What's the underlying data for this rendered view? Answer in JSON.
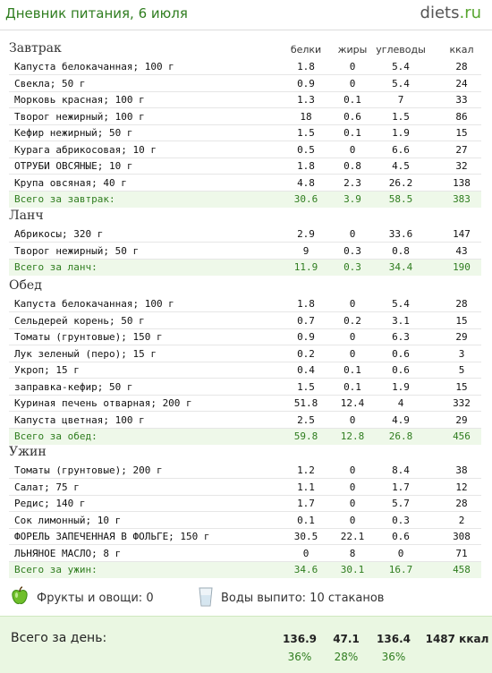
{
  "header": {
    "title": "Дневник питания, 6 июля",
    "logo_main": "diets",
    "logo_tld": ".ru"
  },
  "columns": {
    "protein": "белки",
    "fat": "жиры",
    "carbs": "углеводы",
    "kcal": "ккал"
  },
  "meals": [
    {
      "title": "Завтрак",
      "items": [
        [
          "Капуста белокачанная; 100 г",
          "1.8",
          "0",
          "5.4",
          "28"
        ],
        [
          "Свекла; 50 г",
          "0.9",
          "0",
          "5.4",
          "24"
        ],
        [
          "Морковь красная; 100 г",
          "1.3",
          "0.1",
          "7",
          "33"
        ],
        [
          "Творог нежирный; 100 г",
          "18",
          "0.6",
          "1.5",
          "86"
        ],
        [
          "Кефир нежирный; 50 г",
          "1.5",
          "0.1",
          "1.9",
          "15"
        ],
        [
          "Курага абрикосовая; 10 г",
          "0.5",
          "0",
          "6.6",
          "27"
        ],
        [
          "ОТРУБИ ОВСЯНЫЕ; 10 г",
          "1.8",
          "0.8",
          "4.5",
          "32"
        ],
        [
          "Крупа овсяная; 40 г",
          "4.8",
          "2.3",
          "26.2",
          "138"
        ]
      ],
      "total": [
        "Всего за завтрак:",
        "30.6",
        "3.9",
        "58.5",
        "383"
      ]
    },
    {
      "title": "Ланч",
      "items": [
        [
          "Абрикосы; 320 г",
          "2.9",
          "0",
          "33.6",
          "147"
        ],
        [
          "Творог нежирный; 50 г",
          "9",
          "0.3",
          "0.8",
          "43"
        ]
      ],
      "total": [
        "Всего за ланч:",
        "11.9",
        "0.3",
        "34.4",
        "190"
      ]
    },
    {
      "title": "Обед",
      "items": [
        [
          "Капуста белокачанная; 100 г",
          "1.8",
          "0",
          "5.4",
          "28"
        ],
        [
          "Сельдерей корень; 50 г",
          "0.7",
          "0.2",
          "3.1",
          "15"
        ],
        [
          "Томаты (грунтовые); 150 г",
          "0.9",
          "0",
          "6.3",
          "29"
        ],
        [
          "Лук зеленый (перо); 15 г",
          "0.2",
          "0",
          "0.6",
          "3"
        ],
        [
          "Укроп; 15 г",
          "0.4",
          "0.1",
          "0.6",
          "5"
        ],
        [
          "заправка-кефир; 50 г",
          "1.5",
          "0.1",
          "1.9",
          "15"
        ],
        [
          "Куриная печень отварная; 200 г",
          "51.8",
          "12.4",
          "4",
          "332"
        ],
        [
          "Капуста цветная; 100 г",
          "2.5",
          "0",
          "4.9",
          "29"
        ]
      ],
      "total": [
        "Всего за обед:",
        "59.8",
        "12.8",
        "26.8",
        "456"
      ]
    },
    {
      "title": "Ужин",
      "items": [
        [
          "Томаты (грунтовые); 200 г",
          "1.2",
          "0",
          "8.4",
          "38"
        ],
        [
          "Салат; 75 г",
          "1.1",
          "0",
          "1.7",
          "12"
        ],
        [
          "Редис; 140 г",
          "1.7",
          "0",
          "5.7",
          "28"
        ],
        [
          "Сок лимонный; 10 г",
          "0.1",
          "0",
          "0.3",
          "2"
        ],
        [
          "ФОРЕЛЬ ЗАПЕЧЕННАЯ В ФОЛЬГЕ; 150 г",
          "30.5",
          "22.1",
          "0.6",
          "308"
        ],
        [
          "ЛЬНЯНОЕ МАСЛО; 8 г",
          "0",
          "8",
          "0",
          "71"
        ]
      ],
      "total": [
        "Всего за ужин:",
        "34.6",
        "30.1",
        "16.7",
        "458"
      ]
    }
  ],
  "extras": {
    "fruits": "Фрукты и овощи: 0",
    "water": "Воды выпито: 10 стаканов"
  },
  "day_total": {
    "label": "Всего за день:",
    "protein": "136.9",
    "fat": "47.1",
    "carbs": "136.4",
    "kcal": "1487 ккал",
    "protein_pct": "36%",
    "fat_pct": "28%",
    "carbs_pct": "36%"
  },
  "colors": {
    "accent_green": "#2f7d1f",
    "total_bg": "#eef8e9"
  }
}
